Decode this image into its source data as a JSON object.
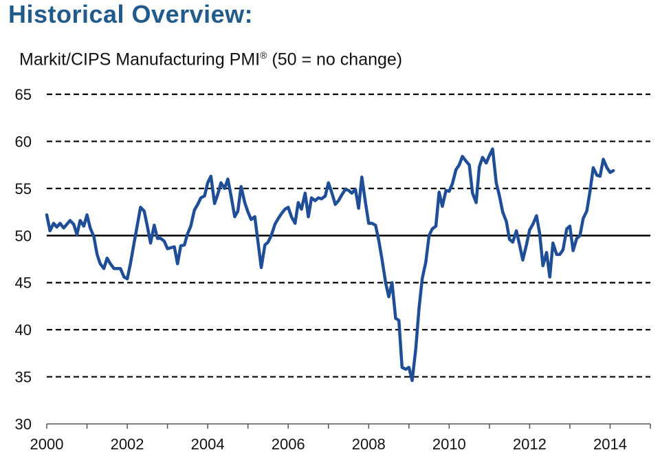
{
  "page": {
    "title": "Historical Overview:"
  },
  "chart_data": {
    "type": "line",
    "title": "Markit/CIPS Manufacturing PMI",
    "title_mark": "®",
    "title_suffix": "(50 = no change)",
    "xlabel": "",
    "ylabel": "",
    "xlim": [
      2000,
      2015
    ],
    "ylim": [
      30,
      65
    ],
    "x_ticks": [
      2000,
      2002,
      2004,
      2006,
      2008,
      2010,
      2012,
      2014
    ],
    "y_ticks": [
      30,
      35,
      40,
      45,
      50,
      55,
      60,
      65
    ],
    "dashed_gridlines": [
      35,
      40,
      45,
      55,
      60,
      65
    ],
    "solid_reference_line": 50,
    "series_color": "#1f4e96",
    "series": [
      {
        "values": [
          [
            2000.0,
            52.2
          ],
          [
            2000.08,
            50.5
          ],
          [
            2000.17,
            51.3
          ],
          [
            2000.25,
            50.9
          ],
          [
            2000.33,
            51.3
          ],
          [
            2000.42,
            50.8
          ],
          [
            2000.5,
            51.2
          ],
          [
            2000.58,
            51.6
          ],
          [
            2000.67,
            51.2
          ],
          [
            2000.75,
            50.1
          ],
          [
            2000.83,
            51.6
          ],
          [
            2000.92,
            51.0
          ],
          [
            2001.0,
            52.2
          ],
          [
            2001.08,
            50.8
          ],
          [
            2001.17,
            49.9
          ],
          [
            2001.25,
            48.0
          ],
          [
            2001.33,
            47.0
          ],
          [
            2001.42,
            46.5
          ],
          [
            2001.5,
            47.6
          ],
          [
            2001.58,
            47.0
          ],
          [
            2001.67,
            46.5
          ],
          [
            2001.75,
            46.5
          ],
          [
            2001.83,
            46.5
          ],
          [
            2001.92,
            45.6
          ],
          [
            2002.0,
            45.4
          ],
          [
            2002.08,
            47.0
          ],
          [
            2002.17,
            49.2
          ],
          [
            2002.25,
            51.1
          ],
          [
            2002.33,
            53.0
          ],
          [
            2002.42,
            52.6
          ],
          [
            2002.5,
            51.0
          ],
          [
            2002.58,
            49.2
          ],
          [
            2002.67,
            51.1
          ],
          [
            2002.75,
            49.7
          ],
          [
            2002.83,
            49.7
          ],
          [
            2002.92,
            49.4
          ],
          [
            2003.0,
            48.6
          ],
          [
            2003.08,
            48.7
          ],
          [
            2003.17,
            48.8
          ],
          [
            2003.25,
            47.0
          ],
          [
            2003.33,
            48.9
          ],
          [
            2003.42,
            49.0
          ],
          [
            2003.5,
            50.2
          ],
          [
            2003.58,
            51.0
          ],
          [
            2003.67,
            52.7
          ],
          [
            2003.75,
            53.3
          ],
          [
            2003.83,
            54.0
          ],
          [
            2003.92,
            54.2
          ],
          [
            2004.0,
            55.6
          ],
          [
            2004.08,
            56.3
          ],
          [
            2004.17,
            53.4
          ],
          [
            2004.25,
            54.4
          ],
          [
            2004.33,
            55.6
          ],
          [
            2004.42,
            55.0
          ],
          [
            2004.5,
            56.0
          ],
          [
            2004.58,
            54.2
          ],
          [
            2004.67,
            52.0
          ],
          [
            2004.75,
            52.6
          ],
          [
            2004.83,
            55.2
          ],
          [
            2004.92,
            53.5
          ],
          [
            2005.0,
            52.5
          ],
          [
            2005.08,
            51.7
          ],
          [
            2005.17,
            52.0
          ],
          [
            2005.25,
            49.3
          ],
          [
            2005.33,
            46.6
          ],
          [
            2005.42,
            49.0
          ],
          [
            2005.5,
            49.3
          ],
          [
            2005.58,
            50.0
          ],
          [
            2005.67,
            51.2
          ],
          [
            2005.75,
            51.8
          ],
          [
            2005.83,
            52.3
          ],
          [
            2005.92,
            52.8
          ],
          [
            2006.0,
            53.0
          ],
          [
            2006.08,
            52.0
          ],
          [
            2006.17,
            51.3
          ],
          [
            2006.25,
            53.5
          ],
          [
            2006.33,
            52.8
          ],
          [
            2006.42,
            54.5
          ],
          [
            2006.5,
            52.0
          ],
          [
            2006.58,
            54.0
          ],
          [
            2006.67,
            53.7
          ],
          [
            2006.75,
            54.0
          ],
          [
            2006.83,
            53.9
          ],
          [
            2006.92,
            54.2
          ],
          [
            2007.0,
            55.6
          ],
          [
            2007.08,
            54.6
          ],
          [
            2007.17,
            53.3
          ],
          [
            2007.25,
            53.7
          ],
          [
            2007.33,
            54.3
          ],
          [
            2007.42,
            54.9
          ],
          [
            2007.5,
            54.8
          ],
          [
            2007.58,
            54.5
          ],
          [
            2007.67,
            54.9
          ],
          [
            2007.75,
            52.9
          ],
          [
            2007.83,
            56.2
          ],
          [
            2007.92,
            53.5
          ],
          [
            2008.0,
            51.3
          ],
          [
            2008.08,
            51.3
          ],
          [
            2008.17,
            51.1
          ],
          [
            2008.25,
            49.5
          ],
          [
            2008.33,
            47.5
          ],
          [
            2008.42,
            45.0
          ],
          [
            2008.5,
            43.5
          ],
          [
            2008.58,
            45.0
          ],
          [
            2008.67,
            41.2
          ],
          [
            2008.75,
            41.0
          ],
          [
            2008.83,
            36.0
          ],
          [
            2008.92,
            35.8
          ],
          [
            2009.0,
            36.0
          ],
          [
            2009.08,
            34.6
          ],
          [
            2009.17,
            38.0
          ],
          [
            2009.25,
            42.2
          ],
          [
            2009.33,
            45.4
          ],
          [
            2009.42,
            47.2
          ],
          [
            2009.5,
            50.0
          ],
          [
            2009.58,
            50.7
          ],
          [
            2009.67,
            51.0
          ],
          [
            2009.75,
            54.6
          ],
          [
            2009.83,
            53.1
          ],
          [
            2009.92,
            54.8
          ],
          [
            2010.0,
            54.7
          ],
          [
            2010.08,
            55.5
          ],
          [
            2010.17,
            57.0
          ],
          [
            2010.25,
            57.5
          ],
          [
            2010.33,
            58.4
          ],
          [
            2010.42,
            57.9
          ],
          [
            2010.5,
            57.5
          ],
          [
            2010.58,
            54.5
          ],
          [
            2010.67,
            53.5
          ],
          [
            2010.75,
            57.3
          ],
          [
            2010.83,
            58.3
          ],
          [
            2010.92,
            57.7
          ],
          [
            2011.0,
            58.5
          ],
          [
            2011.08,
            59.2
          ],
          [
            2011.17,
            55.6
          ],
          [
            2011.25,
            54.2
          ],
          [
            2011.33,
            52.5
          ],
          [
            2011.42,
            51.5
          ],
          [
            2011.5,
            49.6
          ],
          [
            2011.58,
            49.3
          ],
          [
            2011.67,
            50.5
          ],
          [
            2011.75,
            49.0
          ],
          [
            2011.83,
            47.4
          ],
          [
            2011.92,
            49.0
          ],
          [
            2012.0,
            50.6
          ],
          [
            2012.08,
            51.2
          ],
          [
            2012.17,
            52.1
          ],
          [
            2012.25,
            50.2
          ],
          [
            2012.33,
            46.8
          ],
          [
            2012.42,
            48.2
          ],
          [
            2012.5,
            45.6
          ],
          [
            2012.58,
            49.2
          ],
          [
            2012.67,
            48.0
          ],
          [
            2012.75,
            48.0
          ],
          [
            2012.83,
            48.5
          ],
          [
            2012.92,
            50.7
          ],
          [
            2013.0,
            51.0
          ],
          [
            2013.08,
            48.4
          ],
          [
            2013.17,
            49.7
          ],
          [
            2013.25,
            50.0
          ],
          [
            2013.33,
            51.8
          ],
          [
            2013.42,
            52.6
          ],
          [
            2013.5,
            54.7
          ],
          [
            2013.58,
            57.2
          ],
          [
            2013.67,
            56.4
          ],
          [
            2013.75,
            56.3
          ],
          [
            2013.83,
            58.1
          ],
          [
            2013.92,
            57.2
          ],
          [
            2014.0,
            56.7
          ],
          [
            2014.08,
            56.9
          ]
        ]
      }
    ]
  }
}
